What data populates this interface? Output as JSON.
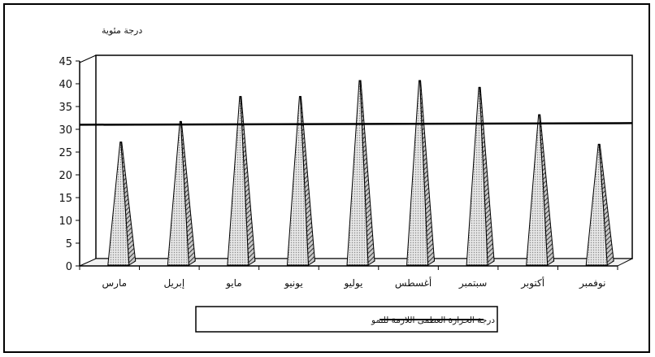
{
  "chart_data": {
    "type": "bar",
    "shape": "pyramid-3d",
    "ylabel": "درجة مئوية",
    "ylim": [
      0,
      45
    ],
    "yticks": [
      0,
      5,
      10,
      15,
      20,
      25,
      30,
      35,
      40,
      45
    ],
    "categories": [
      "مارس",
      "إبريل",
      "مايو",
      "يونيو",
      "يوليو",
      "أغسطس",
      "سبتمبر",
      "أكتوبر",
      "نوفمبر"
    ],
    "series": [
      {
        "values": [
          26.5,
          31,
          36.5,
          36.5,
          40,
          40,
          38.5,
          32.5,
          26
        ]
      }
    ],
    "reference_line": {
      "name": "درجة الحرارة العظمى اللازمة للنمو",
      "value": 31
    },
    "legend_position": "bottom-center",
    "grid": false
  }
}
